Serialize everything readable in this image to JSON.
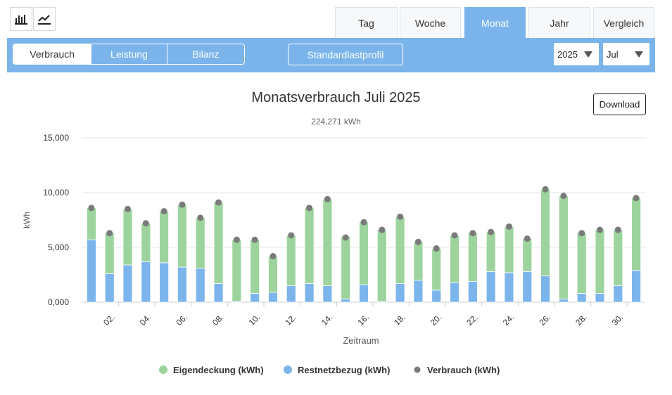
{
  "toolbar": {
    "icons": [
      "bar-chart-icon",
      "line-chart-icon"
    ],
    "period_tabs": [
      "Tag",
      "Woche",
      "Monat",
      "Jahr",
      "Vergleich"
    ],
    "active_period": "Monat"
  },
  "subnav": {
    "views": [
      "Verbrauch",
      "Leistung",
      "Bilanz"
    ],
    "active_view": "Verbrauch",
    "profile_button": "Standardlastprofil",
    "year_select": "2025",
    "month_select": "Jul"
  },
  "download_label": "Download",
  "colors": {
    "accent": "#7ab4ea",
    "eigendeckung": "#9dd49d",
    "restnetzbezug": "#7cb5ec",
    "verbrauch": "#7a7a7a"
  },
  "chart_data": {
    "type": "bar",
    "stacked": true,
    "title": "Monatsverbrauch Juli 2025",
    "subtitle": "224,271 kWh",
    "xlabel": "Zeitraum",
    "ylabel": "kWh",
    "ylim": [
      0,
      15000
    ],
    "yticks": [
      "0,000",
      "5,000",
      "10,000",
      "15,000"
    ],
    "grid": true,
    "legend_position": "bottom",
    "categories": [
      "01.",
      "02.",
      "03.",
      "04.",
      "05.",
      "06.",
      "07.",
      "08.",
      "09.",
      "10.",
      "11.",
      "12.",
      "13.",
      "14.",
      "15.",
      "16.",
      "17.",
      "18.",
      "19.",
      "20.",
      "21.",
      "22.",
      "23.",
      "24.",
      "25.",
      "26.",
      "27.",
      "28.",
      "29.",
      "30.",
      "31."
    ],
    "xtick_labels": [
      "02.",
      "04.",
      "06.",
      "08.",
      "10.",
      "12.",
      "14.",
      "16.",
      "18.",
      "20.",
      "22.",
      "24.",
      "26.",
      "28.",
      "30."
    ],
    "series": [
      {
        "name": "Eigendeckung (kWh)",
        "type": "bar",
        "values": [
          2900,
          3700,
          5100,
          3500,
          4700,
          5700,
          4600,
          7400,
          5600,
          4900,
          3300,
          4600,
          6900,
          7900,
          5700,
          5700,
          6500,
          6100,
          3500,
          3800,
          4300,
          4400,
          3600,
          4200,
          3000,
          7900,
          9400,
          5500,
          5800,
          5100,
          6600
        ]
      },
      {
        "name": "Restnetzbezug (kWh)",
        "type": "bar",
        "values": [
          5700,
          2600,
          3400,
          3700,
          3600,
          3200,
          3100,
          1700,
          100,
          800,
          900,
          1500,
          1700,
          1500,
          300,
          1600,
          100,
          1700,
          2000,
          1100,
          1800,
          1900,
          2800,
          2700,
          2800,
          2400,
          300,
          800,
          800,
          1500,
          2900
        ]
      },
      {
        "name": "Verbrauch (kWh)",
        "type": "scatter",
        "values": [
          8600,
          6300,
          8500,
          7200,
          8300,
          8900,
          7700,
          9100,
          5700,
          5700,
          4200,
          6100,
          8600,
          9400,
          5900,
          7300,
          6600,
          7800,
          5500,
          4900,
          6100,
          6300,
          6400,
          6900,
          5800,
          10300,
          9700,
          6300,
          6600,
          6600,
          9500
        ]
      }
    ]
  }
}
